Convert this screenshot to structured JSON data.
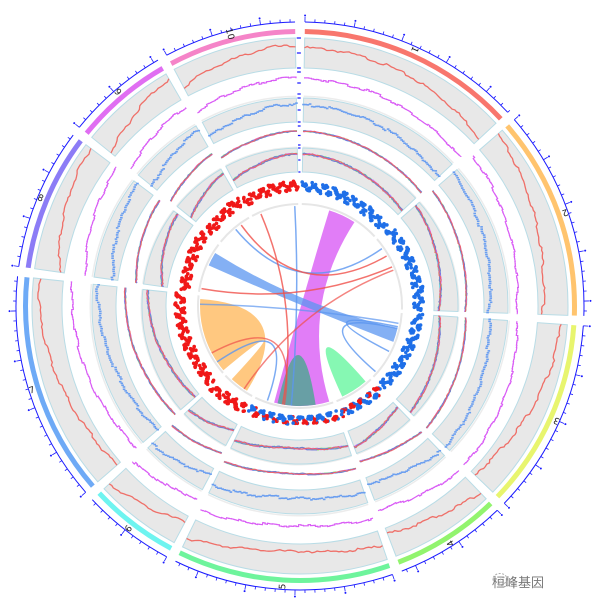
{
  "chart_data": {
    "type": "circos",
    "sectors": [
      {
        "label": "1",
        "length": 46,
        "color": "#f8766d"
      },
      {
        "label": "2",
        "length": 43,
        "color": "#ffc46e"
      },
      {
        "label": "3",
        "length": 40,
        "color": "#e8f56e"
      },
      {
        "label": "4",
        "length": 23,
        "color": "#92f46e"
      },
      {
        "label": "5",
        "length": 45,
        "color": "#6ef49c"
      },
      {
        "label": "6",
        "length": 19,
        "color": "#6ef4f0"
      },
      {
        "label": "7",
        "length": 47,
        "color": "#6eaaf6"
      },
      {
        "label": "8",
        "length": 29,
        "color": "#8c7cf6"
      },
      {
        "label": "9",
        "length": 21,
        "color": "#e06ef2"
      },
      {
        "label": "10",
        "length": 27,
        "color": "#f584c8"
      }
    ],
    "tick_color": "#1a1aff",
    "tracks": [
      {
        "kind": "line",
        "color": "#f0625a",
        "background": "#e8e8e8",
        "values": [
          [
            0.75,
            0.72,
            0.65,
            0.55,
            0.4,
            0.22
          ],
          [
            0.9,
            0.72,
            0.52,
            0.35,
            0.2,
            0.1
          ],
          [
            0.85,
            0.8,
            0.62,
            0.45,
            0.25,
            0.1
          ],
          [
            0.8,
            0.65,
            0.5,
            0.35,
            0.25,
            0.15
          ],
          [
            0.55,
            0.35,
            0.2,
            0.25,
            0.45,
            0.75
          ],
          [
            0.15,
            0.3,
            0.45,
            0.55,
            0.7,
            0.85
          ],
          [
            0.1,
            0.2,
            0.4,
            0.6,
            0.8,
            0.9
          ],
          [
            0.1,
            0.3,
            0.5,
            0.65,
            0.8,
            0.9
          ],
          [
            0.15,
            0.3,
            0.45,
            0.65,
            0.8,
            0.9
          ],
          [
            0.3,
            0.5,
            0.6,
            0.7,
            0.85,
            0.8
          ]
        ]
      },
      {
        "kind": "step",
        "color": "#d95cf5",
        "background": "none",
        "values": [
          [
            0.8,
            0.7,
            0.65,
            0.5,
            0.35,
            0.2
          ],
          [
            0.85,
            0.7,
            0.5,
            0.35,
            0.2,
            0.1
          ],
          [
            0.2,
            0.35,
            0.5,
            0.6,
            0.75,
            0.85
          ],
          [
            0.9,
            0.75,
            0.6,
            0.45,
            0.3,
            0.2
          ],
          [
            0.6,
            0.4,
            0.3,
            0.35,
            0.55,
            0.75
          ],
          [
            0.2,
            0.35,
            0.5,
            0.6,
            0.75,
            0.85
          ],
          [
            0.1,
            0.25,
            0.45,
            0.6,
            0.75,
            0.9
          ],
          [
            0.1,
            0.3,
            0.5,
            0.65,
            0.8,
            0.9
          ],
          [
            0.2,
            0.35,
            0.5,
            0.7,
            0.8,
            0.9
          ],
          [
            0.3,
            0.45,
            0.6,
            0.7,
            0.8,
            0.85
          ]
        ]
      },
      {
        "kind": "points",
        "color": "#6a9ef0",
        "background": "#e8e8e8",
        "values": [
          [
            0.8,
            0.7,
            0.6,
            0.5,
            0.3,
            0.15
          ],
          [
            0.9,
            0.7,
            0.55,
            0.4,
            0.25,
            0.1
          ],
          [
            0.15,
            0.3,
            0.45,
            0.6,
            0.75,
            0.85
          ],
          [
            0.85,
            0.7,
            0.55,
            0.4,
            0.3,
            0.2
          ],
          [
            0.6,
            0.4,
            0.3,
            0.3,
            0.5,
            0.7
          ],
          [
            0.2,
            0.35,
            0.5,
            0.65,
            0.75,
            0.85
          ],
          [
            0.1,
            0.25,
            0.4,
            0.6,
            0.75,
            0.9
          ],
          [
            0.1,
            0.3,
            0.5,
            0.65,
            0.8,
            0.9
          ],
          [
            0.2,
            0.35,
            0.5,
            0.65,
            0.8,
            0.9
          ],
          [
            0.3,
            0.45,
            0.55,
            0.7,
            0.8,
            0.85
          ]
        ]
      },
      {
        "kind": "multiline",
        "colors": [
          "#53e0e0",
          "#7ee07a",
          "#d95cf5",
          "#6a70d8",
          "#f0625a"
        ],
        "background": "none",
        "values": [
          [
            0.85,
            0.75,
            0.6,
            0.45,
            0.3,
            0.15
          ],
          [
            0.9,
            0.75,
            0.55,
            0.4,
            0.25,
            0.1
          ],
          [
            0.15,
            0.3,
            0.45,
            0.6,
            0.75,
            0.9
          ],
          [
            0.85,
            0.7,
            0.55,
            0.45,
            0.3,
            0.2
          ],
          [
            0.6,
            0.45,
            0.3,
            0.3,
            0.5,
            0.7
          ],
          [
            0.2,
            0.35,
            0.5,
            0.65,
            0.75,
            0.85
          ],
          [
            0.1,
            0.25,
            0.4,
            0.6,
            0.75,
            0.9
          ],
          [
            0.1,
            0.3,
            0.5,
            0.65,
            0.8,
            0.9
          ],
          [
            0.2,
            0.35,
            0.5,
            0.65,
            0.8,
            0.9
          ],
          [
            0.3,
            0.45,
            0.55,
            0.7,
            0.8,
            0.85
          ]
        ]
      },
      {
        "kind": "multiline",
        "colors": [
          "#53e0e0",
          "#7ee07a",
          "#d95cf5",
          "#6a70d8",
          "#f0625a"
        ],
        "background": "#e8e8e8",
        "values": [
          [
            0.85,
            0.75,
            0.6,
            0.45,
            0.3,
            0.15
          ],
          [
            0.9,
            0.75,
            0.55,
            0.4,
            0.25,
            0.1
          ],
          [
            0.15,
            0.3,
            0.45,
            0.6,
            0.75,
            0.9
          ],
          [
            0.2,
            0.3,
            0.45,
            0.55,
            0.7,
            0.8
          ],
          [
            0.6,
            0.45,
            0.3,
            0.3,
            0.5,
            0.7
          ],
          [
            0.2,
            0.35,
            0.5,
            0.65,
            0.75,
            0.85
          ],
          [
            0.1,
            0.25,
            0.4,
            0.6,
            0.75,
            0.9
          ],
          [
            0.1,
            0.3,
            0.5,
            0.65,
            0.8,
            0.9
          ],
          [
            0.2,
            0.35,
            0.5,
            0.65,
            0.8,
            0.9
          ],
          [
            0.3,
            0.45,
            0.55,
            0.7,
            0.8,
            0.85
          ]
        ]
      },
      {
        "kind": "scatter",
        "background": "none",
        "colors": {
          "positive": "#1f6fe8",
          "negative": "#f01818"
        },
        "values": [
          [
            0.7,
            0.65,
            0.6,
            0.55,
            0.45,
            0.35
          ],
          [
            0.5,
            0.55,
            0.6,
            0.65,
            0.7,
            0.6
          ],
          [
            0.6,
            0.55,
            0.5,
            0.45,
            0.4,
            0.35
          ],
          [
            0.4,
            0.35,
            0.35,
            0.3,
            0.35,
            0.4
          ],
          [
            0.35,
            0.3,
            0.3,
            0.3,
            0.35,
            0.4
          ],
          [
            0.45,
            0.5,
            0.55,
            0.6,
            0.65,
            0.7
          ],
          [
            0.5,
            0.55,
            0.6,
            0.7,
            0.75,
            0.8
          ],
          [
            0.5,
            0.55,
            0.6,
            0.65,
            0.7,
            0.75
          ],
          [
            0.55,
            0.6,
            0.65,
            0.7,
            0.75,
            0.8
          ],
          [
            0.6,
            0.65,
            0.7,
            0.75,
            0.75,
            0.8
          ]
        ],
        "sign": [
          "positive",
          "positive",
          "positive",
          "mixed",
          "mixed",
          "negative",
          "negative",
          "negative",
          "negative",
          "negative"
        ]
      }
    ],
    "links": [
      {
        "from": {
          "sector": 1,
          "range": [
            16,
            32
          ]
        },
        "to": {
          "sector": 5,
          "range": [
            2,
            34
          ]
        },
        "color": "#d95cf5",
        "opacity": 0.8
      },
      {
        "from": {
          "sector": 5,
          "range": [
            10,
            21
          ]
        },
        "to": {
          "sector": 5,
          "range": [
            21,
            32
          ]
        },
        "color": "#4aa890",
        "opacity": 0.8
      },
      {
        "from": {
          "sector": 4,
          "range": [
            3,
            12
          ]
        },
        "to": {
          "sector": 4,
          "range": [
            12,
            19
          ]
        },
        "color": "#5df59a",
        "opacity": 0.75
      },
      {
        "from": {
          "sector": 7,
          "range": [
            1,
            45
          ]
        },
        "to": {
          "sector": 6,
          "range": [
            4,
            15
          ]
        },
        "color": "#ffb04a",
        "opacity": 0.7
      },
      {
        "from": {
          "sector": 8,
          "range": [
            16,
            24
          ]
        },
        "to": {
          "sector": 3,
          "range": [
            9,
            17
          ]
        },
        "color": "#5b96f0",
        "opacity": 0.75
      },
      {
        "from": {
          "sector": 10,
          "range": [
            25,
            25.5
          ]
        },
        "to": {
          "sector": 5,
          "range": [
            24,
            24.5
          ]
        },
        "color": "#5b96f0",
        "opacity": 0.8
      },
      {
        "from": {
          "sector": 9,
          "range": [
            11,
            11.5
          ]
        },
        "to": {
          "sector": 2,
          "range": [
            6,
            6.5
          ]
        },
        "color": "#5b96f0",
        "opacity": 0.8
      },
      {
        "from": {
          "sector": 9,
          "range": [
            15,
            15.5
          ]
        },
        "to": {
          "sector": 2,
          "range": [
            11,
            11.5
          ]
        },
        "color": "#f0504a",
        "opacity": 0.8
      },
      {
        "from": {
          "sector": 10,
          "range": [
            5,
            5.5
          ]
        },
        "to": {
          "sector": 5,
          "range": [
            29,
            29.5
          ]
        },
        "color": "#f0504a",
        "opacity": 0.8
      },
      {
        "from": {
          "sector": 8,
          "range": [
            2,
            2.5
          ]
        },
        "to": {
          "sector": 2,
          "range": [
            18,
            18.5
          ]
        },
        "color": "#f0504a",
        "opacity": 0.8
      },
      {
        "from": {
          "sector": 3,
          "range": [
            8,
            8.5
          ]
        },
        "to": {
          "sector": 3,
          "range": [
            23,
            23.5
          ]
        },
        "color": "#5b96f0",
        "opacity": 0.8
      },
      {
        "from": {
          "sector": 3,
          "range": [
            9,
            9.5
          ]
        },
        "to": {
          "sector": 3,
          "range": [
            37,
            37.5
          ]
        },
        "color": "#5b96f0",
        "opacity": 0.8
      },
      {
        "from": {
          "sector": 5,
          "range": [
            38,
            38.5
          ]
        },
        "to": {
          "sector": 7,
          "range": [
            7,
            7.5
          ]
        },
        "color": "#5b96f0",
        "opacity": 0.8
      },
      {
        "from": {
          "sector": 7,
          "range": [
            13,
            13.5
          ]
        },
        "to": {
          "sector": 5,
          "range": [
            28,
            28.5
          ]
        },
        "color": "#f0504a",
        "opacity": 0.7
      },
      {
        "from": {
          "sector": 7,
          "range": [
            42,
            42.5
          ]
        },
        "to": {
          "sector": 3,
          "range": [
            6,
            6.5
          ]
        },
        "color": "#5b96f0",
        "opacity": 0.7
      },
      {
        "from": {
          "sector": 6,
          "range": [
            6,
            6.5
          ]
        },
        "to": {
          "sector": 2,
          "range": [
            20,
            20.5
          ]
        },
        "color": "#f0504a",
        "opacity": 0.7
      }
    ]
  },
  "watermark": {
    "text": "桓峰基因"
  }
}
